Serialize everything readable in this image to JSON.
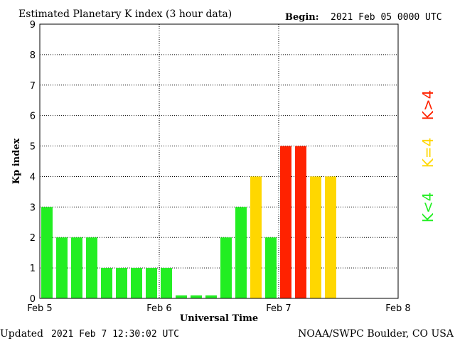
{
  "header": {
    "title": "Estimated Planetary K index (3 hour data)",
    "begin_label": "Begin:",
    "begin_value": "2021 Feb 05 0000 UTC"
  },
  "footer": {
    "updated_label": "Updated",
    "updated_value": "2021 Feb  7 12:30:02 UTC",
    "source": "NOAA/SWPC Boulder, CO USA"
  },
  "legend": [
    {
      "label": "K<4",
      "color": "#22ee22"
    },
    {
      "label": "K=4",
      "color": "#ffd700"
    },
    {
      "label": "K>4",
      "color": "#ff2200"
    }
  ],
  "colors": {
    "low": "#22ee22",
    "mid": "#ffd700",
    "high": "#ff2200"
  },
  "chart_data": {
    "type": "bar",
    "title": "Estimated Planetary K index (3 hour data)",
    "xlabel": "Universal Time",
    "ylabel": "Kp index",
    "ylim": [
      0,
      9
    ],
    "yticks": [
      "0",
      "1",
      "2",
      "3",
      "4",
      "5",
      "6",
      "7",
      "8",
      "9"
    ],
    "xticks": [
      "Feb 5",
      "Feb 6",
      "Feb 7",
      "Feb 8"
    ],
    "grid": true,
    "values": [
      3,
      2,
      2,
      2,
      1,
      1,
      1,
      1,
      1,
      0.1,
      0.1,
      0.1,
      2,
      3,
      4,
      2,
      5,
      5,
      4,
      4
    ]
  }
}
